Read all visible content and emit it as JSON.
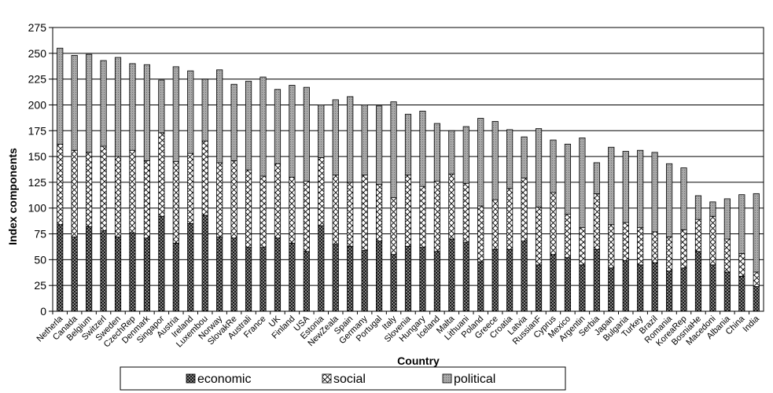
{
  "chart_data": {
    "type": "bar",
    "stacked": true,
    "xlabel": "Country",
    "ylabel": "Index components",
    "ylim": [
      0,
      275
    ],
    "yticks": [
      0,
      25,
      50,
      75,
      100,
      125,
      150,
      175,
      200,
      225,
      250,
      275
    ],
    "grid": true,
    "legend_position": "bottom",
    "categories": [
      "Netherla",
      "Canada",
      "Belgium",
      "Switzerl",
      "Sweden",
      "CzechRep",
      "Denmark",
      "Singapor",
      "Austria",
      "Ireland",
      "Luxembou",
      "Norway",
      "SlovakRe",
      "Australi",
      "France",
      "UK",
      "Finland",
      "USA",
      "Estonia",
      "NewZeala",
      "Spain",
      "Germany",
      "Portugal",
      "Italy",
      "Slovenia",
      "Hungary",
      "Iceland",
      "Malta",
      "Lithuani",
      "Poland",
      "Greece",
      "Croatia",
      "Latvia",
      "RussianF",
      "Cyprus",
      "Mexico",
      "Argentin",
      "Serbia",
      "Japan",
      "Bulgaria",
      "Turkey",
      "Brazil",
      "Romania",
      "KoreaRep",
      "BosniaHe",
      "Macedoni",
      "Albania",
      "China",
      "India"
    ],
    "series": [
      {
        "name": "economic",
        "pattern": "checker",
        "values": [
          84,
          72,
          82,
          78,
          72,
          76,
          71,
          92,
          66,
          85,
          93,
          72,
          71,
          62,
          62,
          71,
          66,
          58,
          83,
          65,
          63,
          59,
          68,
          55,
          63,
          62,
          58,
          70,
          67,
          48,
          60,
          60,
          68,
          45,
          55,
          52,
          45,
          60,
          42,
          49,
          45,
          47,
          39,
          42,
          58,
          45,
          38,
          34,
          24
        ]
      },
      {
        "name": "social",
        "pattern": "crosshatch",
        "values": [
          78,
          84,
          72,
          82,
          78,
          80,
          75,
          81,
          79,
          68,
          72,
          72,
          75,
          75,
          69,
          72,
          64,
          68,
          66,
          67,
          62,
          73,
          55,
          55,
          69,
          59,
          68,
          63,
          57,
          54,
          48,
          59,
          61,
          56,
          60,
          42,
          36,
          54,
          42,
          37,
          36,
          30,
          33,
          37,
          31,
          47,
          32,
          22,
          14
        ]
      },
      {
        "name": "political",
        "pattern": "dotted",
        "values": [
          93,
          92,
          95,
          83,
          96,
          84,
          93,
          51,
          92,
          80,
          60,
          90,
          74,
          86,
          96,
          72,
          89,
          91,
          51,
          73,
          83,
          68,
          76,
          93,
          59,
          73,
          56,
          42,
          55,
          85,
          76,
          57,
          40,
          76,
          51,
          68,
          87,
          30,
          75,
          69,
          75,
          77,
          71,
          60,
          23,
          14,
          39,
          57,
          76
        ]
      }
    ]
  }
}
